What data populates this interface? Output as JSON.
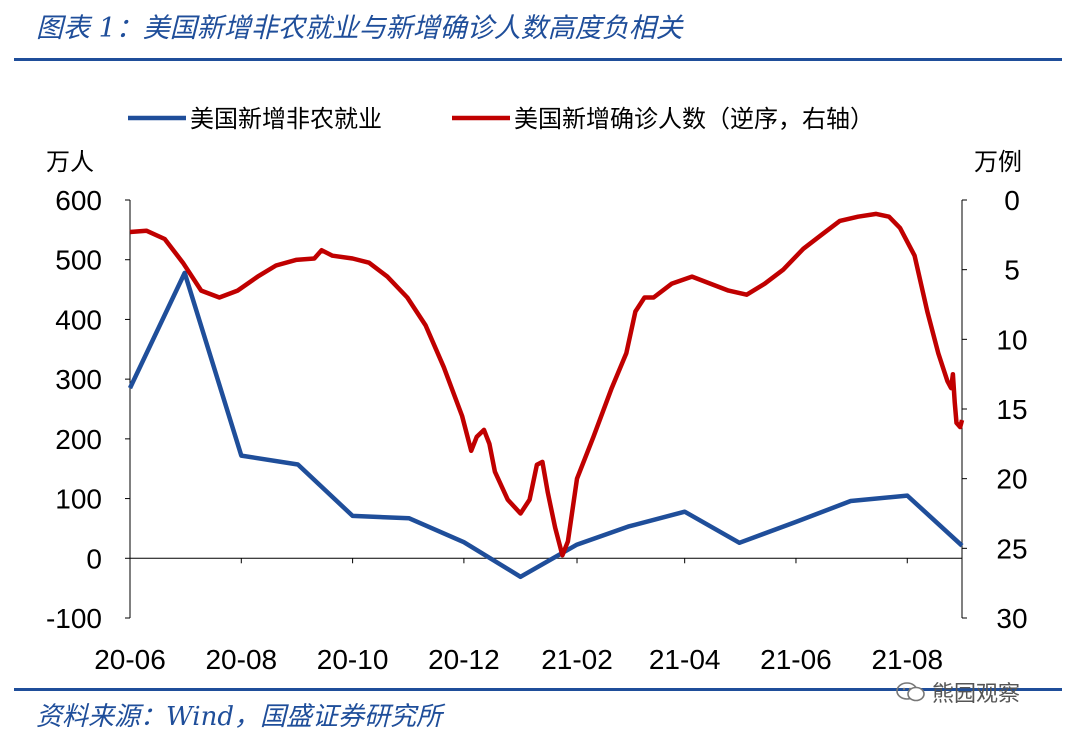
{
  "title": "图表 1：美国新增非农就业与新增确诊人数高度负相关",
  "source": "资料来源：Wind，国盛证券研究所",
  "watermark": "熊园观察",
  "chart_data": {
    "type": "line",
    "y_left_unit": "万人",
    "y_right_unit": "万例",
    "y_left_ticks": [
      "600",
      "500",
      "400",
      "300",
      "200",
      "100",
      "0",
      "-100"
    ],
    "y_right_ticks": [
      "0",
      "5",
      "10",
      "15",
      "20",
      "25",
      "30"
    ],
    "x_ticks": [
      "20-06",
      "20-08",
      "20-10",
      "20-12",
      "21-02",
      "21-04",
      "21-06",
      "21-08"
    ],
    "y_left_range": [
      -100,
      600
    ],
    "y_right_range": [
      0,
      30
    ],
    "y_right_reversed": true,
    "x_range": [
      "2020-06-01",
      "2021-08-31"
    ],
    "series": [
      {
        "name": "美国新增非农就业",
        "axis": "left",
        "color": "#1f4e9a",
        "points": [
          [
            "2020-06-01",
            285
          ],
          [
            "2020-07-01",
            478
          ],
          [
            "2020-08-01",
            172
          ],
          [
            "2020-09-01",
            157
          ],
          [
            "2020-10-01",
            71
          ],
          [
            "2020-11-01",
            67
          ],
          [
            "2020-12-01",
            27
          ],
          [
            "2021-01-01",
            -31
          ],
          [
            "2021-02-01",
            23
          ],
          [
            "2021-03-01",
            53
          ],
          [
            "2021-04-01",
            78
          ],
          [
            "2021-05-01",
            26
          ],
          [
            "2021-06-01",
            61
          ],
          [
            "2021-07-01",
            96
          ],
          [
            "2021-08-01",
            105
          ],
          [
            "2021-08-31",
            21
          ]
        ]
      },
      {
        "name": "美国新增确诊人数（逆序，右轴）",
        "axis": "right",
        "color": "#c00000",
        "points": [
          [
            "2020-06-01",
            2.3
          ],
          [
            "2020-06-10",
            2.2
          ],
          [
            "2020-06-20",
            2.8
          ],
          [
            "2020-06-30",
            4.5
          ],
          [
            "2020-07-10",
            6.5
          ],
          [
            "2020-07-20",
            7.0
          ],
          [
            "2020-07-30",
            6.5
          ],
          [
            "2020-08-10",
            5.5
          ],
          [
            "2020-08-20",
            4.7
          ],
          [
            "2020-08-31",
            4.3
          ],
          [
            "2020-09-10",
            4.2
          ],
          [
            "2020-09-14",
            3.6
          ],
          [
            "2020-09-20",
            4.0
          ],
          [
            "2020-10-01",
            4.2
          ],
          [
            "2020-10-10",
            4.5
          ],
          [
            "2020-10-20",
            5.5
          ],
          [
            "2020-10-31",
            7.0
          ],
          [
            "2020-11-10",
            9.0
          ],
          [
            "2020-11-20",
            12.0
          ],
          [
            "2020-11-30",
            15.5
          ],
          [
            "2020-12-05",
            18.0
          ],
          [
            "2020-12-08",
            17.0
          ],
          [
            "2020-12-12",
            16.5
          ],
          [
            "2020-12-15",
            17.5
          ],
          [
            "2020-12-18",
            19.5
          ],
          [
            "2020-12-25",
            21.5
          ],
          [
            "2021-01-01",
            22.5
          ],
          [
            "2021-01-06",
            21.5
          ],
          [
            "2021-01-10",
            19.0
          ],
          [
            "2021-01-13",
            18.8
          ],
          [
            "2021-01-16",
            21.0
          ],
          [
            "2021-01-20",
            23.5
          ],
          [
            "2021-01-24",
            25.5
          ],
          [
            "2021-01-27",
            24.5
          ],
          [
            "2021-02-01",
            20.0
          ],
          [
            "2021-02-10",
            17.0
          ],
          [
            "2021-02-20",
            13.5
          ],
          [
            "2021-02-28",
            11.0
          ],
          [
            "2021-03-05",
            8.0
          ],
          [
            "2021-03-10",
            7.0
          ],
          [
            "2021-03-15",
            7.0
          ],
          [
            "2021-03-25",
            6.0
          ],
          [
            "2021-04-05",
            5.5
          ],
          [
            "2021-04-15",
            6.0
          ],
          [
            "2021-04-25",
            6.5
          ],
          [
            "2021-05-05",
            6.8
          ],
          [
            "2021-05-15",
            6.0
          ],
          [
            "2021-05-25",
            5.0
          ],
          [
            "2021-06-05",
            3.5
          ],
          [
            "2021-06-15",
            2.5
          ],
          [
            "2021-06-25",
            1.5
          ],
          [
            "2021-07-05",
            1.2
          ],
          [
            "2021-07-15",
            1.0
          ],
          [
            "2021-07-22",
            1.2
          ],
          [
            "2021-07-28",
            2.0
          ],
          [
            "2021-08-05",
            4.0
          ],
          [
            "2021-08-12",
            8.0
          ],
          [
            "2021-08-18",
            11.0
          ],
          [
            "2021-08-23",
            13.0
          ],
          [
            "2021-08-25",
            13.5
          ],
          [
            "2021-08-26",
            12.5
          ],
          [
            "2021-08-27",
            14.5
          ],
          [
            "2021-08-28",
            16.0
          ],
          [
            "2021-08-30",
            16.3
          ],
          [
            "2021-08-31",
            15.8
          ]
        ]
      }
    ]
  }
}
